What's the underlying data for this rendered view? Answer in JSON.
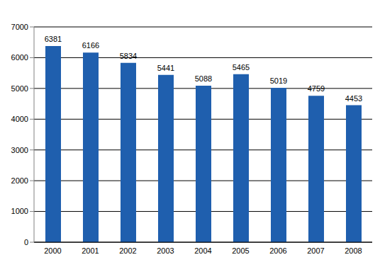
{
  "chart_data": {
    "type": "bar",
    "categories": [
      "2000",
      "2001",
      "2002",
      "2003",
      "2004",
      "2005",
      "2006",
      "2007",
      "2008"
    ],
    "values": [
      6381,
      6166,
      5834,
      5441,
      5088,
      5465,
      5019,
      4759,
      4453
    ],
    "color": "#1f5fae",
    "ylim": [
      0,
      7000
    ],
    "yticks": [
      0,
      1000,
      2000,
      3000,
      4000,
      5000,
      6000,
      7000
    ],
    "grid": true,
    "data_labels": true
  }
}
